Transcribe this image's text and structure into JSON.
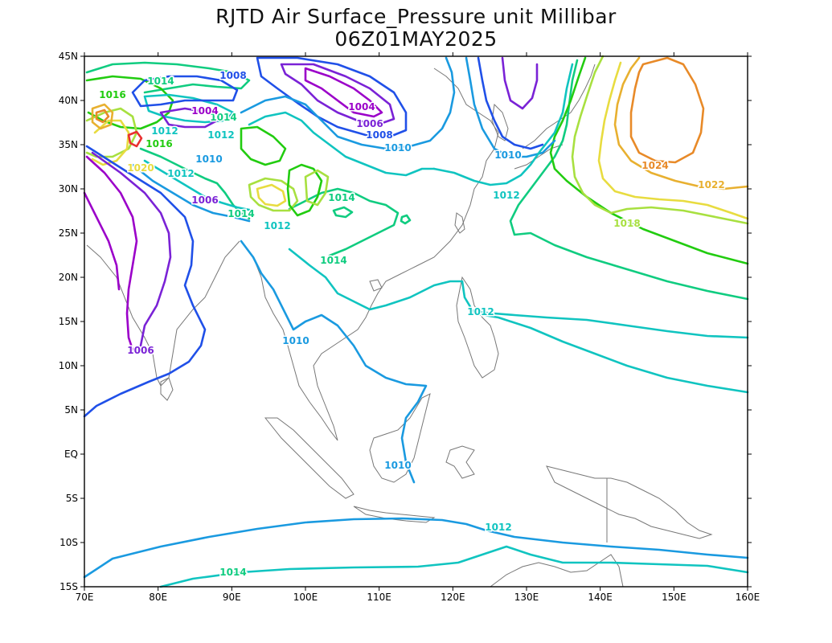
{
  "title": "RJTD Air Surface_Pressure unit Millibar",
  "subtitle": "06Z01MAY2025",
  "lon_labels": [
    "70E",
    "80E",
    "90E",
    "100E",
    "110E",
    "120E",
    "130E",
    "140E",
    "150E",
    "160E"
  ],
  "lat_labels": [
    "45N",
    "40N",
    "35N",
    "30N",
    "25N",
    "20N",
    "15N",
    "10N",
    "5N",
    "EQ",
    "5S",
    "10S",
    "15S"
  ],
  "contour_labels": [
    "1014",
    "1016",
    "1008",
    "1004",
    "1006",
    "1012",
    "1016",
    "1020",
    "1014",
    "1010",
    "1012",
    "1006",
    "1008",
    "1010",
    "1024",
    "1022",
    "1014",
    "1018",
    "1014",
    "1012",
    "1014",
    "1012",
    "1010",
    "1004",
    "1006",
    "1010",
    "1010",
    "1012",
    "1012",
    "1014",
    "1012"
  ],
  "colors": {
    "1004": "#9b00c9",
    "1006": "#7a22d6",
    "1008": "#2050e8",
    "1010": "#1a9ae0",
    "1012": "#10c4c0",
    "1014": "#10cc80",
    "1016": "#22cc10",
    "1018": "#a8e040",
    "1020": "#e8dc40",
    "1022": "#e8b030",
    "1024": "#e88a28",
    "coast": "#777777"
  }
}
